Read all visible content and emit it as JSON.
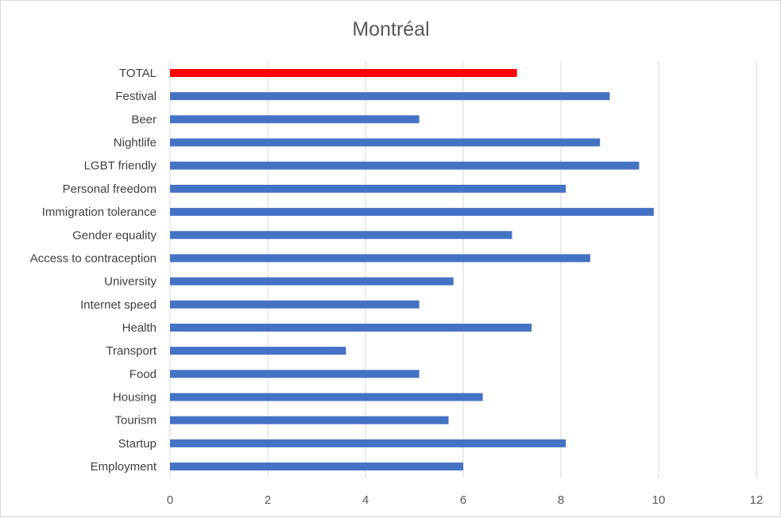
{
  "chart_data": {
    "type": "bar",
    "orientation": "horizontal",
    "title": "Montréal",
    "xlabel": "",
    "ylabel": "",
    "xlim": [
      0,
      12
    ],
    "xticks": [
      0,
      2,
      4,
      6,
      8,
      10,
      12
    ],
    "grid": "vertical",
    "legend": "none",
    "categories": [
      "TOTAL",
      "Festival",
      "Beer",
      "Nightlife",
      "LGBT friendly",
      "Personal freedom",
      "Immigration tolerance",
      "Gender equality",
      "Access to contraception",
      "University",
      "Internet speed",
      "Health",
      "Transport",
      "Food",
      "Housing",
      "Tourism",
      "Startup",
      "Employment"
    ],
    "values": [
      7.1,
      9.0,
      5.1,
      8.8,
      9.6,
      8.1,
      9.9,
      7.0,
      8.6,
      5.8,
      5.1,
      7.4,
      3.6,
      5.1,
      6.4,
      5.7,
      8.1,
      6.0
    ],
    "colors": {
      "highlight": "#ff0000",
      "bar": "#4472c4",
      "grid": "#d9d9d9",
      "border": "#d9d9d9"
    },
    "highlight_category": "TOTAL"
  }
}
